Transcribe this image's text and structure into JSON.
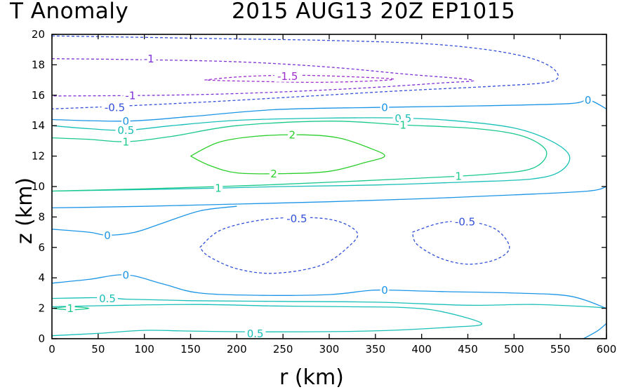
{
  "header": {
    "title_left": "T Anomaly",
    "title_right": "2015 AUG13 20Z   EP1015"
  },
  "chart_data": {
    "type": "contour",
    "title": "T Anomaly",
    "subtitle": "2015 AUG13 20Z   EP1015",
    "xlabel": "r (km)",
    "ylabel": "z (km)",
    "xlim": [
      0,
      600
    ],
    "ylim": [
      0,
      20
    ],
    "xticks": [
      0,
      50,
      100,
      150,
      200,
      250,
      300,
      350,
      400,
      450,
      500,
      550,
      600
    ],
    "yticks": [
      0,
      2,
      4,
      6,
      8,
      10,
      12,
      14,
      16,
      18,
      20
    ],
    "contour_levels": [
      -1.5,
      -1,
      -0.5,
      0,
      0.5,
      1,
      2
    ],
    "colors": {
      "neg1.5": "#9d2fcf",
      "neg1": "#7e2fd6",
      "neg0.5": "#3250d9",
      "zero": "#1c95e6",
      "pos0.5": "#19c0b8",
      "pos1": "#19c98a",
      "pos2": "#2bcf2b"
    },
    "contours": [
      {
        "level": -1,
        "style": "dashed",
        "color_key": "neg1",
        "points": [
          [
            0,
            18.4
          ],
          [
            80,
            18.35
          ],
          [
            200,
            18.2
          ],
          [
            300,
            17.85
          ],
          [
            380,
            17.4
          ],
          [
            455,
            17.0
          ],
          [
            420,
            16.8
          ],
          [
            330,
            16.45
          ],
          [
            220,
            16.15
          ],
          [
            120,
            16.0
          ],
          [
            0,
            15.95
          ]
        ],
        "labels": [
          {
            "text": "-1",
            "at": [
              105,
              18.4
            ]
          },
          {
            "text": "-1",
            "at": [
              85,
              16.0
            ]
          }
        ]
      },
      {
        "level": -1.5,
        "style": "dashed",
        "color_key": "neg1.5",
        "points": [
          [
            165,
            17.0
          ],
          [
            200,
            17.2
          ],
          [
            240,
            17.3
          ],
          [
            280,
            17.3
          ],
          [
            330,
            17.2
          ],
          [
            370,
            17.05
          ],
          [
            330,
            16.9
          ],
          [
            280,
            16.85
          ],
          [
            230,
            16.9
          ],
          [
            190,
            16.95
          ],
          [
            165,
            17.0
          ]
        ],
        "labels": [
          {
            "text": "-1.5",
            "at": [
              255,
              17.25
            ]
          }
        ]
      },
      {
        "level": -0.5,
        "style": "dashed",
        "color_key": "neg0.5",
        "points": [
          [
            0,
            19.9
          ],
          [
            100,
            19.8
          ],
          [
            200,
            19.7
          ],
          [
            300,
            19.6
          ],
          [
            400,
            19.4
          ],
          [
            470,
            19.0
          ],
          [
            520,
            18.4
          ],
          [
            545,
            17.6
          ],
          [
            540,
            16.9
          ],
          [
            480,
            16.6
          ],
          [
            380,
            16.3
          ],
          [
            280,
            15.95
          ],
          [
            180,
            15.6
          ],
          [
            80,
            15.3
          ],
          [
            0,
            15.1
          ]
        ],
        "labels": [
          {
            "text": "-0.5",
            "at": [
              68,
              15.2
            ]
          }
        ]
      },
      {
        "level": -0.5,
        "style": "dashed",
        "color_key": "neg0.5",
        "points": [
          [
            160,
            6.0
          ],
          [
            185,
            7.2
          ],
          [
            240,
            7.9
          ],
          [
            300,
            7.85
          ],
          [
            330,
            7.0
          ],
          [
            320,
            6.0
          ],
          [
            290,
            4.8
          ],
          [
            240,
            4.3
          ],
          [
            200,
            4.6
          ],
          [
            170,
            5.4
          ],
          [
            160,
            6.0
          ]
        ],
        "labels": [
          {
            "text": "-0.5",
            "at": [
              265,
              7.9
            ]
          }
        ]
      },
      {
        "level": -0.5,
        "style": "dashed",
        "color_key": "neg0.5",
        "points": [
          [
            390,
            7.0
          ],
          [
            420,
            7.6
          ],
          [
            450,
            7.7
          ],
          [
            480,
            7.2
          ],
          [
            495,
            6.0
          ],
          [
            480,
            5.2
          ],
          [
            450,
            4.9
          ],
          [
            420,
            5.3
          ],
          [
            395,
            6.2
          ],
          [
            390,
            7.0
          ]
        ],
        "labels": [
          {
            "text": "-0.5",
            "at": [
              447,
              7.7
            ]
          }
        ]
      },
      {
        "level": 0,
        "style": "solid",
        "color_key": "zero",
        "points": [
          [
            0,
            14.4
          ],
          [
            80,
            14.3
          ],
          [
            150,
            14.6
          ],
          [
            240,
            15.05
          ],
          [
            350,
            15.2
          ],
          [
            460,
            15.3
          ],
          [
            560,
            15.45
          ],
          [
            580,
            15.7
          ],
          [
            600,
            15.1
          ]
        ],
        "labels": [
          {
            "text": "0",
            "at": [
              80,
              14.3
            ]
          },
          {
            "text": "0",
            "at": [
              360,
              15.2
            ]
          },
          {
            "text": "0",
            "at": [
              580,
              15.7
            ]
          }
        ]
      },
      {
        "level": 0,
        "style": "solid",
        "color_key": "zero",
        "points": [
          [
            0,
            8.6
          ],
          [
            100,
            8.7
          ],
          [
            200,
            8.85
          ],
          [
            300,
            9.0
          ],
          [
            400,
            9.2
          ],
          [
            500,
            9.45
          ],
          [
            580,
            9.7
          ],
          [
            600,
            10.0
          ]
        ],
        "labels": []
      },
      {
        "level": 0,
        "style": "solid",
        "color_key": "zero",
        "points": [
          [
            0,
            7.2
          ],
          [
            40,
            7.0
          ],
          [
            60,
            6.8
          ],
          [
            90,
            7.0
          ],
          [
            120,
            7.6
          ],
          [
            160,
            8.4
          ],
          [
            200,
            8.7
          ]
        ],
        "labels": [
          {
            "text": "0",
            "at": [
              60,
              6.8
            ]
          }
        ]
      },
      {
        "level": 0,
        "style": "solid",
        "color_key": "zero",
        "points": [
          [
            0,
            3.65
          ],
          [
            40,
            3.9
          ],
          [
            80,
            4.2
          ],
          [
            120,
            3.6
          ],
          [
            160,
            3.0
          ],
          [
            230,
            2.85
          ],
          [
            300,
            2.9
          ],
          [
            340,
            3.15
          ],
          [
            360,
            3.2
          ],
          [
            420,
            3.1
          ],
          [
            500,
            3.0
          ],
          [
            560,
            2.8
          ],
          [
            600,
            2.0
          ]
        ],
        "labels": [
          {
            "text": "0",
            "at": [
              80,
              4.2
            ]
          },
          {
            "text": "0",
            "at": [
              360,
              3.2
            ]
          }
        ]
      },
      {
        "level": 0,
        "style": "solid",
        "color_key": "zero",
        "points": [
          [
            575,
            0
          ],
          [
            590,
            0.5
          ],
          [
            600,
            1.0
          ]
        ],
        "labels": []
      },
      {
        "level": 0.5,
        "style": "solid",
        "color_key": "pos0.5",
        "points": [
          [
            0,
            14.0
          ],
          [
            40,
            13.8
          ],
          [
            80,
            13.7
          ],
          [
            130,
            14.0
          ],
          [
            200,
            14.35
          ],
          [
            300,
            14.5
          ],
          [
            380,
            14.5
          ],
          [
            440,
            14.3
          ],
          [
            500,
            13.85
          ],
          [
            540,
            13.0
          ],
          [
            560,
            12.0
          ],
          [
            550,
            11.0
          ],
          [
            520,
            10.5
          ],
          [
            450,
            10.3
          ],
          [
            350,
            10.1
          ],
          [
            250,
            10.0
          ],
          [
            180,
            9.9
          ],
          [
            100,
            9.8
          ],
          [
            0,
            9.7
          ]
        ],
        "labels": [
          {
            "text": "0.5",
            "at": [
              80,
              13.7
            ]
          },
          {
            "text": "0.5",
            "at": [
              380,
              14.5
            ]
          }
        ]
      },
      {
        "level": 0.5,
        "style": "solid",
        "color_key": "pos0.5",
        "points": [
          [
            0,
            2.65
          ],
          [
            60,
            2.7
          ],
          [
            80,
            2.6
          ],
          [
            150,
            2.5
          ],
          [
            250,
            2.45
          ],
          [
            350,
            2.4
          ],
          [
            450,
            2.2
          ],
          [
            520,
            2.25
          ],
          [
            580,
            2.1
          ],
          [
            600,
            2.0
          ]
        ],
        "labels": [
          {
            "text": "0.5",
            "at": [
              60,
              2.65
            ]
          }
        ]
      },
      {
        "level": 0.5,
        "style": "solid",
        "color_key": "pos0.5",
        "points": [
          [
            0,
            0.2
          ],
          [
            50,
            0.35
          ],
          [
            100,
            0.55
          ],
          [
            150,
            0.5
          ],
          [
            230,
            0.45
          ],
          [
            340,
            0.5
          ],
          [
            430,
            0.75
          ],
          [
            465,
            1.0
          ],
          [
            420,
            1.8
          ],
          [
            380,
            2.05
          ],
          [
            320,
            2.1
          ],
          [
            240,
            2.15
          ],
          [
            160,
            2.25
          ],
          [
            80,
            2.2
          ],
          [
            0,
            2.1
          ]
        ],
        "labels": [
          {
            "text": "0.5",
            "at": [
              220,
              0.35
            ]
          }
        ]
      },
      {
        "level": 1,
        "style": "solid",
        "color_key": "pos1",
        "points": [
          [
            0,
            13.2
          ],
          [
            40,
            13.1
          ],
          [
            80,
            12.95
          ],
          [
            130,
            13.3
          ],
          [
            200,
            14.0
          ],
          [
            300,
            14.3
          ],
          [
            380,
            14.05
          ],
          [
            460,
            13.8
          ],
          [
            510,
            13.3
          ],
          [
            535,
            12.3
          ],
          [
            520,
            11.2
          ],
          [
            470,
            10.8
          ],
          [
            380,
            10.5
          ],
          [
            250,
            10.15
          ],
          [
            180,
            10.0
          ],
          [
            100,
            9.85
          ],
          [
            0,
            9.7
          ]
        ],
        "labels": [
          {
            "text": "1",
            "at": [
              80,
              12.95
            ]
          },
          {
            "text": "1",
            "at": [
              380,
              14.05
            ]
          },
          {
            "text": "1",
            "at": [
              440,
              10.7
            ]
          },
          {
            "text": "1",
            "at": [
              180,
              9.9
            ]
          }
        ]
      },
      {
        "level": 1,
        "style": "solid",
        "color_key": "pos1",
        "points": [
          [
            0,
            2.0
          ],
          [
            20,
            2.1
          ],
          [
            40,
            2.0
          ],
          [
            20,
            1.9
          ],
          [
            0,
            2.0
          ]
        ],
        "labels": [
          {
            "text": "1",
            "at": [
              20,
              2.0
            ]
          }
        ]
      },
      {
        "level": 2,
        "style": "solid",
        "color_key": "pos2",
        "points": [
          [
            150,
            12.0
          ],
          [
            180,
            12.9
          ],
          [
            220,
            13.3
          ],
          [
            270,
            13.4
          ],
          [
            310,
            13.2
          ],
          [
            345,
            12.5
          ],
          [
            360,
            12.0
          ],
          [
            340,
            11.6
          ],
          [
            300,
            11.0
          ],
          [
            250,
            10.85
          ],
          [
            200,
            10.9
          ],
          [
            170,
            11.4
          ],
          [
            150,
            12.0
          ]
        ],
        "labels": [
          {
            "text": "2",
            "at": [
              260,
              13.4
            ]
          },
          {
            "text": "2",
            "at": [
              240,
              10.85
            ]
          }
        ]
      }
    ]
  }
}
